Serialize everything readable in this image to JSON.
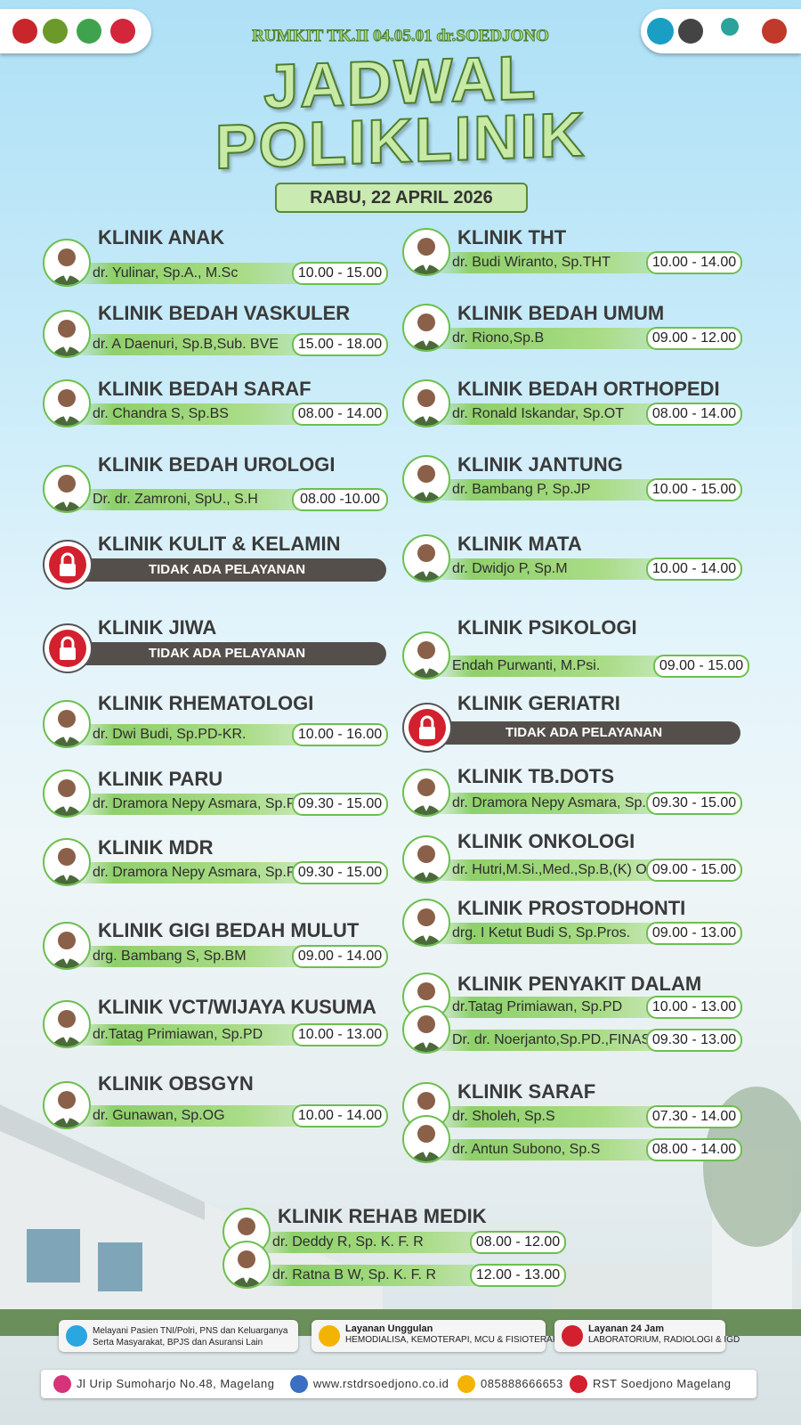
{
  "header": {
    "hospital": "RUMKIT TK.II 04.05.01 dr.SOEDJONO",
    "title_line1": "JADWAL",
    "title_line2": "POLIKLINIK",
    "date": "RABU, 22 APRIL 2026"
  },
  "clinics": [
    {
      "name": "KLINIK ANAK",
      "doctors": [
        {
          "name": "dr. Yulinar, Sp.A., M.Sc",
          "hours": "10.00 - 15.00"
        }
      ]
    },
    {
      "name": "KLINIK BEDAH VASKULER",
      "doctors": [
        {
          "name": "dr. A Daenuri, Sp.B,Sub. BVE",
          "hours": "15.00 - 18.00"
        }
      ]
    },
    {
      "name": "KLINIK BEDAH SARAF",
      "doctors": [
        {
          "name": "dr. Chandra S, Sp.BS",
          "hours": "08.00 - 14.00"
        }
      ]
    },
    {
      "name": "KLINIK BEDAH UROLOGI",
      "doctors": [
        {
          "name": "Dr. dr. Zamroni, SpU., S.H",
          "hours": "08.00 -10.00"
        }
      ]
    },
    {
      "name": "KLINIK KULIT & KELAMIN",
      "status": "TIDAK ADA PELAYANAN"
    },
    {
      "name": "KLINIK JIWA",
      "status": "TIDAK ADA PELAYANAN"
    },
    {
      "name": "KLINIK RHEMATOLOGI",
      "doctors": [
        {
          "name": "dr. Dwi Budi, Sp.PD-KR.",
          "hours": "10.00 - 16.00"
        }
      ]
    },
    {
      "name": "KLINIK PARU",
      "doctors": [
        {
          "name": "dr. Dramora Nepy Asmara, Sp.P",
          "hours": "09.30 - 15.00"
        }
      ]
    },
    {
      "name": "KLINIK MDR",
      "doctors": [
        {
          "name": "dr. Dramora Nepy Asmara, Sp.P",
          "hours": "09.30 - 15.00"
        }
      ]
    },
    {
      "name": "KLINIK GIGI BEDAH MULUT",
      "doctors": [
        {
          "name": "drg. Bambang S, Sp.BM",
          "hours": "09.00 - 14.00"
        }
      ]
    },
    {
      "name": "KLINIK VCT/WIJAYA KUSUMA",
      "doctors": [
        {
          "name": "dr.Tatag Primiawan, Sp.PD",
          "hours": "10.00 - 13.00"
        }
      ]
    },
    {
      "name": "KLINIK OBSGYN",
      "doctors": [
        {
          "name": "dr. Gunawan, Sp.OG",
          "hours": "10.00 - 14.00"
        }
      ]
    },
    {
      "name": "KLINIK THT",
      "doctors": [
        {
          "name": "dr. Budi Wiranto, Sp.THT",
          "hours": "10.00 - 14.00"
        }
      ]
    },
    {
      "name": "KLINIK BEDAH UMUM",
      "doctors": [
        {
          "name": "dr. Riono,Sp.B",
          "hours": "09.00 - 12.00"
        }
      ]
    },
    {
      "name": "KLINIK BEDAH ORTHOPEDI",
      "doctors": [
        {
          "name": "dr. Ronald Iskandar, Sp.OT",
          "hours": "08.00 - 14.00"
        }
      ]
    },
    {
      "name": "KLINIK JANTUNG",
      "doctors": [
        {
          "name": "dr. Bambang P, Sp.JP",
          "hours": "10.00 - 15.00"
        }
      ]
    },
    {
      "name": "KLINIK MATA",
      "doctors": [
        {
          "name": "dr. Dwidjo P, Sp.M",
          "hours": "10.00 - 14.00"
        }
      ]
    },
    {
      "name": "KLINIK PSIKOLOGI",
      "doctors": [
        {
          "name": "Endah Purwanti, M.Psi.",
          "hours": "09.00 - 15.00"
        }
      ]
    },
    {
      "name": "KLINIK GERIATRI",
      "status": "TIDAK ADA PELAYANAN"
    },
    {
      "name": "KLINIK TB.DOTS",
      "doctors": [
        {
          "name": "dr. Dramora Nepy Asmara, Sp.P",
          "hours": "09.30 - 15.00"
        }
      ]
    },
    {
      "name": "KLINIK ONKOLOGI",
      "doctors": [
        {
          "name": "dr. Hutri,M.Si.,Med.,Sp.B,(K) Onk",
          "hours": "09.00 - 15.00"
        }
      ]
    },
    {
      "name": "KLINIK PROSTODHONTI",
      "doctors": [
        {
          "name": "drg. I Ketut Budi S, Sp.Pros.",
          "hours": "09.00 - 13.00"
        }
      ]
    },
    {
      "name": "KLINIK PENYAKIT DALAM",
      "doctors": [
        {
          "name": "dr.Tatag Primiawan, Sp.PD",
          "hours": "10.00 - 13.00"
        },
        {
          "name": "Dr. dr. Noerjanto,Sp.PD.,FINASIM",
          "hours": "09.30 - 13.00"
        }
      ]
    },
    {
      "name": "KLINIK SARAF",
      "doctors": [
        {
          "name": "dr. Sholeh, Sp.S",
          "hours": "07.30 - 14.00"
        },
        {
          "name": "dr. Antun Subono, Sp.S",
          "hours": "08.00 - 14.00"
        }
      ]
    },
    {
      "name": "KLINIK REHAB MEDIK",
      "doctors": [
        {
          "name": "dr. Deddy R, Sp. K. F. R",
          "hours": "08.00 - 12.00"
        },
        {
          "name": "dr. Ratna B W, Sp. K. F. R",
          "hours": "12.00 - 13.00"
        }
      ]
    }
  ],
  "services": [
    {
      "lines": [
        "Melayani Pasien TNI/Polri, PNS dan Keluarganya",
        "Serta Masyarakat, BPJS dan Asuransi Lain"
      ]
    },
    {
      "title": "Layanan Unggulan",
      "lines": [
        "HEMODIALISA, KEMOTERAPI, MCU & FISIOTERAPI"
      ]
    },
    {
      "title": "Layanan 24 Jam",
      "lines": [
        "LABORATORIUM, RADIOLOGI & IGD"
      ]
    }
  ],
  "contacts": [
    "Jl Urip Sumoharjo No.48, Magelang",
    "www.rstdrsoedjono.co.id",
    "085888666653",
    "RST Soedjono Magelang"
  ]
}
